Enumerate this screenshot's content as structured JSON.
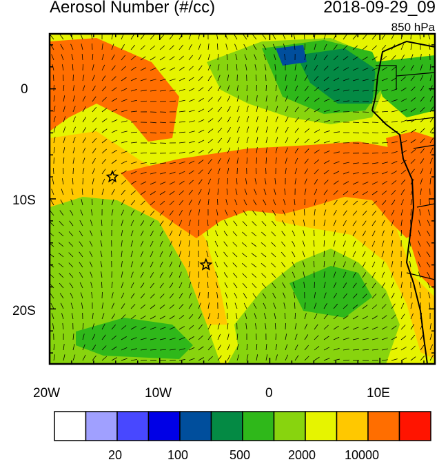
{
  "title_left": "Aerosol Number (#/cc)",
  "title_right": "2018-09-29_09",
  "subtitle": "850 hPa",
  "axis": {
    "x_ticks": [
      "20W",
      "10W",
      "0",
      "10E"
    ],
    "y_ticks": [
      "0",
      "10S",
      "20S"
    ]
  },
  "colorbar": {
    "colors": [
      "#ffffff",
      "#a0a0ff",
      "#4848ff",
      "#0000e6",
      "#004e9c",
      "#048a44",
      "#2fb81a",
      "#88d40e",
      "#e6f400",
      "#ffc800",
      "#ff6e00",
      "#ff1400"
    ],
    "labels": [
      "20",
      "100",
      "500",
      "2000",
      "10000"
    ]
  },
  "markers": [
    {
      "name": "star-marker-1",
      "lon": -14.3,
      "lat": -8.0
    },
    {
      "name": "star-marker-2",
      "lon": -5.8,
      "lat": -16.0
    }
  ]
}
